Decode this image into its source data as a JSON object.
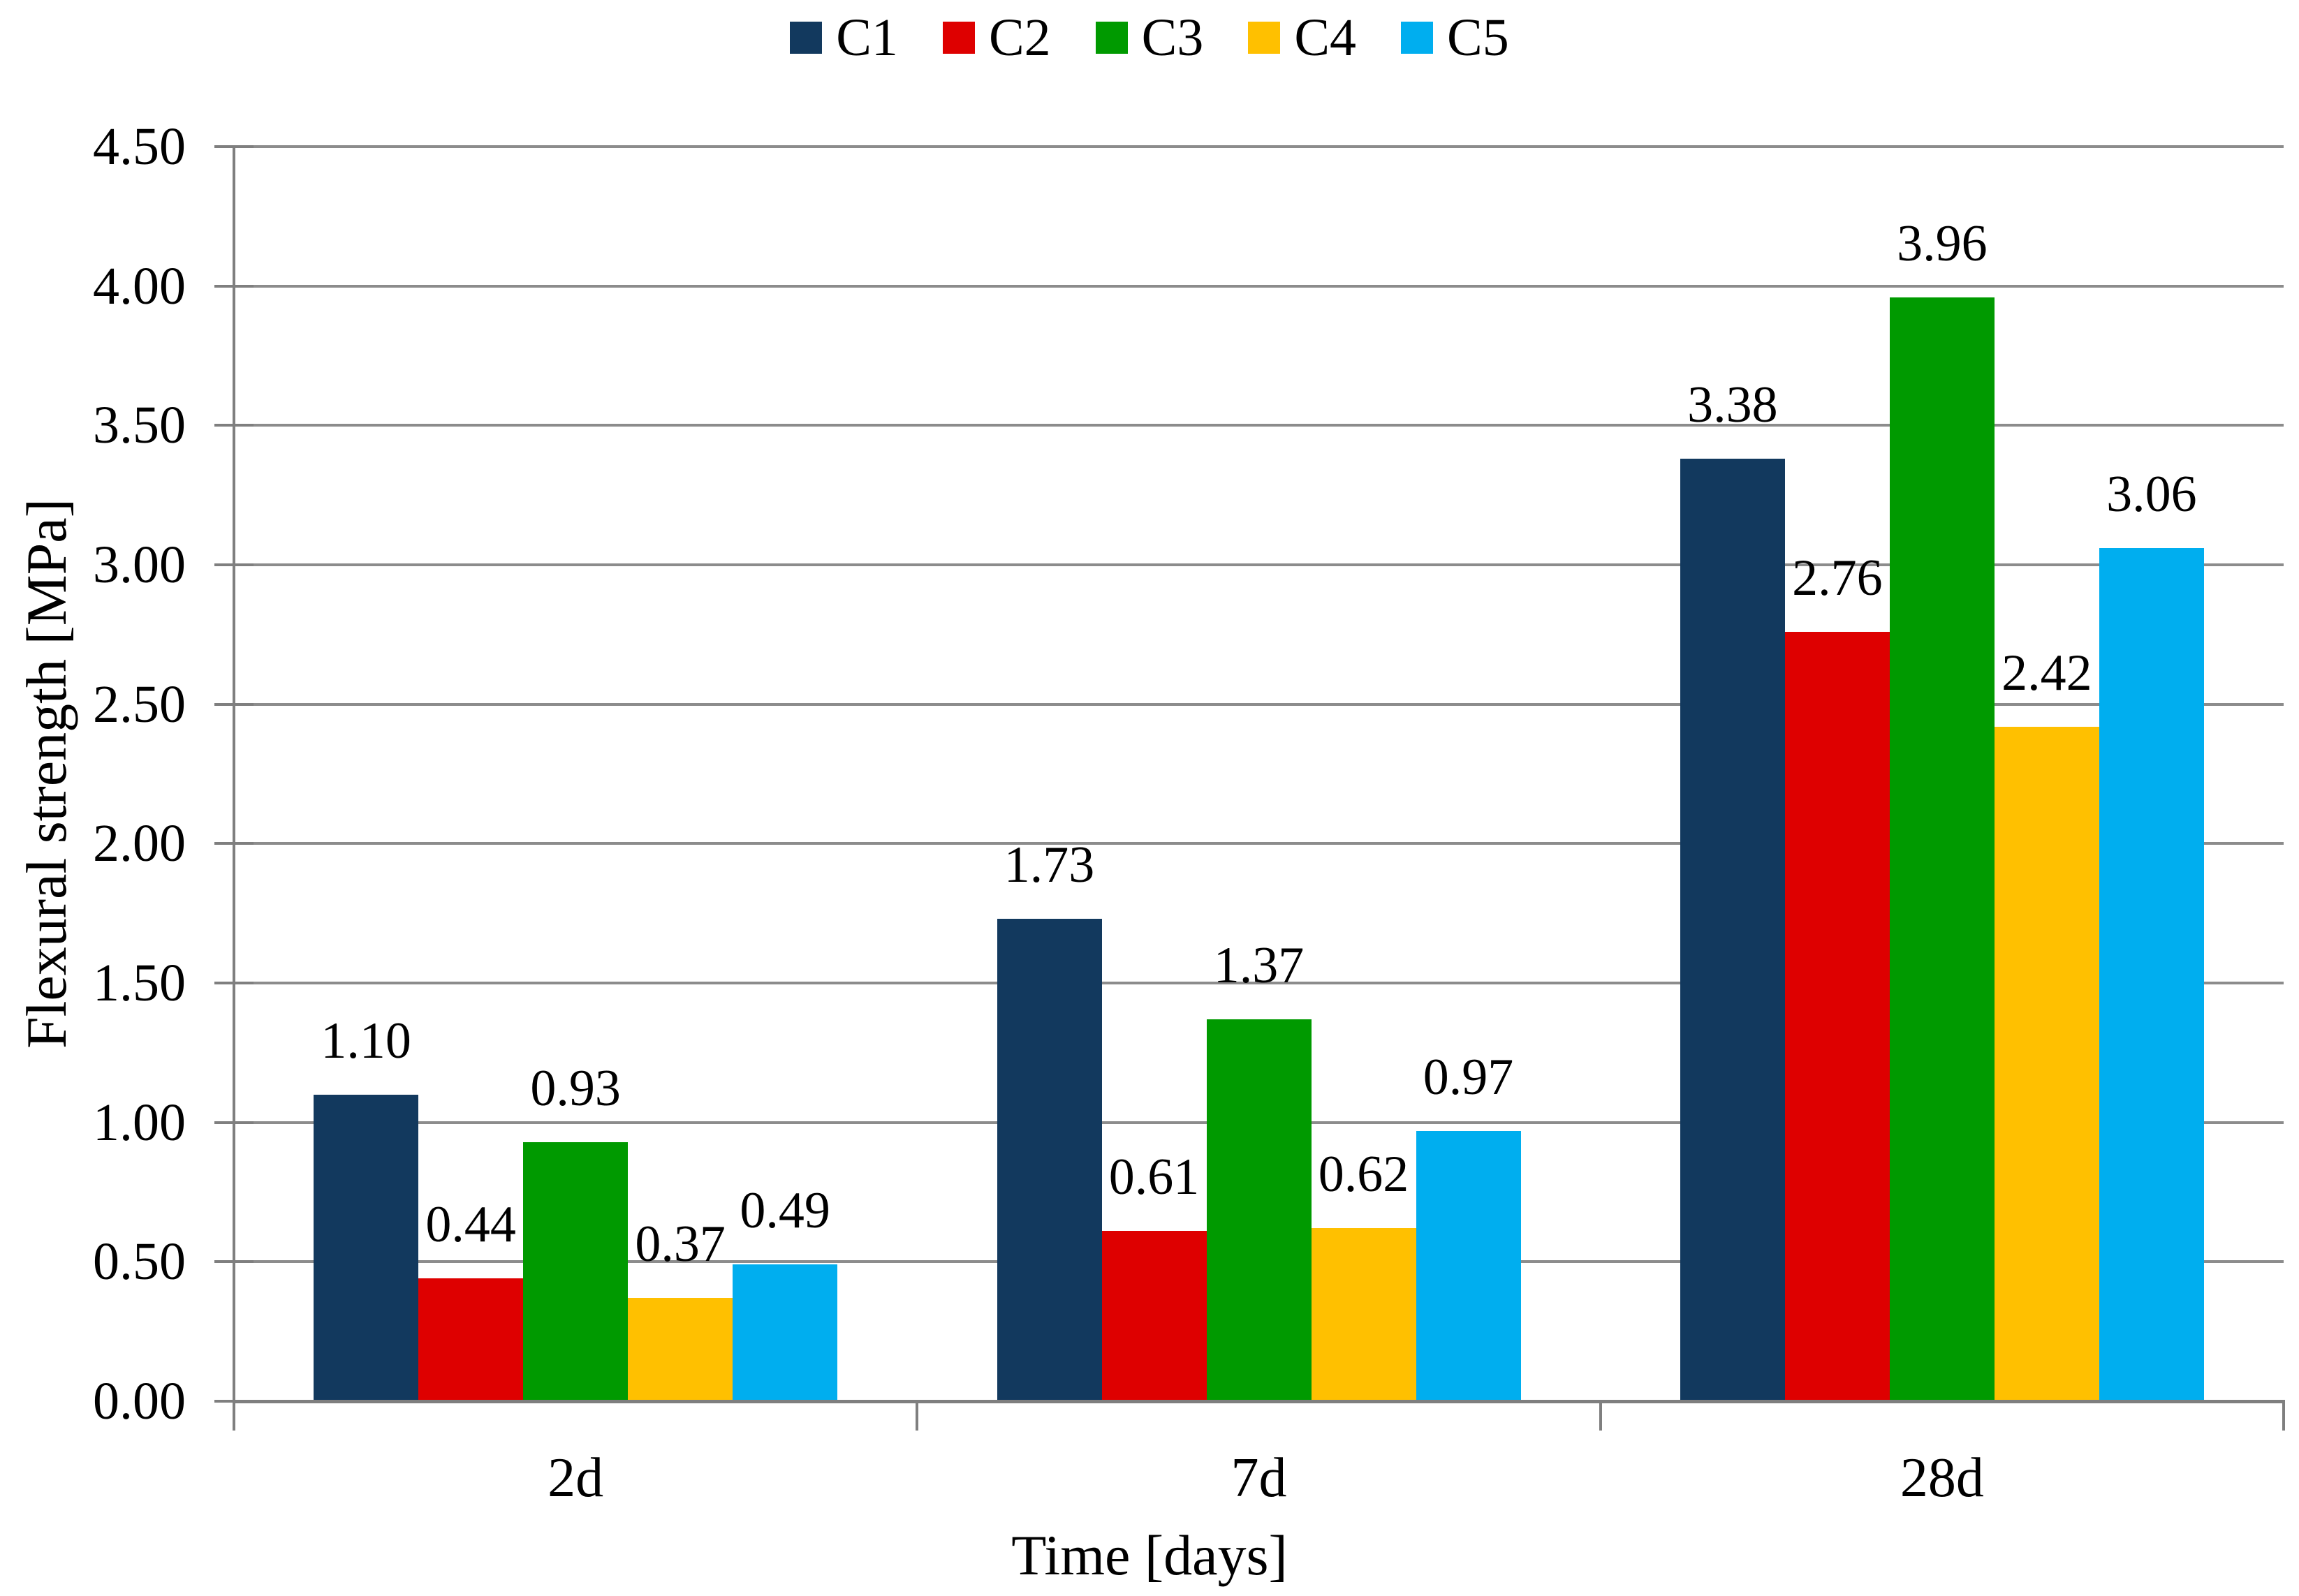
{
  "chart_data": {
    "type": "bar",
    "title": "",
    "xlabel": "Time [days]",
    "ylabel": "Flexural strength [MPa]",
    "categories": [
      "2d",
      "7d",
      "28d"
    ],
    "series": [
      {
        "name": "C1",
        "color": "#12395E",
        "values": [
          1.1,
          1.73,
          3.38
        ]
      },
      {
        "name": "C2",
        "color": "#DE0000",
        "values": [
          0.44,
          0.61,
          2.76
        ]
      },
      {
        "name": "C3",
        "color": "#009A00",
        "values": [
          0.93,
          1.37,
          3.96
        ]
      },
      {
        "name": "C4",
        "color": "#FFC000",
        "values": [
          0.37,
          0.62,
          2.42
        ]
      },
      {
        "name": "C5",
        "color": "#00AEEF",
        "values": [
          0.49,
          0.97,
          3.06
        ]
      }
    ],
    "ylim": [
      0,
      4.5
    ],
    "y_ticks": [
      "0.00",
      "0.50",
      "1.00",
      "1.50",
      "2.00",
      "2.50",
      "3.00",
      "3.50",
      "4.00",
      "4.50"
    ],
    "grid": true,
    "legend_position": "top",
    "value_labels": "outside-end, two decimals"
  },
  "colors": {
    "background": "#FFFFFF",
    "gridline": "#8C8C8C",
    "axis": "#7F7F7F",
    "text": "#000000"
  }
}
